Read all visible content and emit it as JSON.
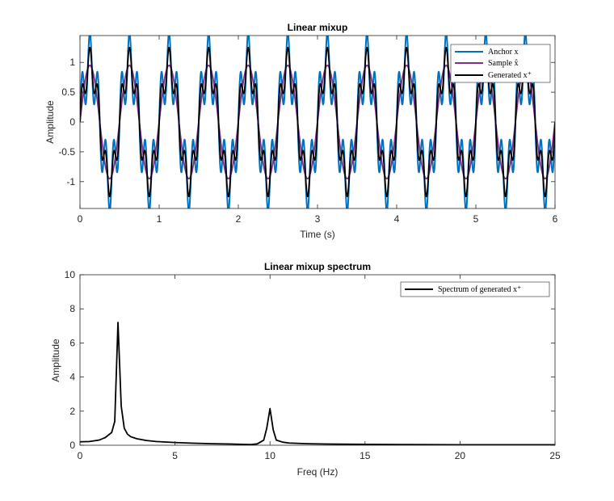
{
  "chart_data": [
    {
      "type": "line",
      "title": "Linear mixup",
      "xlabel": "Time (s)",
      "ylabel": "Amplitude",
      "xlim": [
        0,
        6
      ],
      "ylim": [
        -1.45,
        1.45
      ],
      "xticks": [
        0,
        1,
        2,
        3,
        4,
        5,
        6
      ],
      "yticks": [
        -1,
        -0.5,
        0,
        0.5,
        1
      ],
      "xtick_labels": [
        "0",
        "1",
        "2",
        "3",
        "4",
        "5",
        "6"
      ],
      "ytick_labels": [
        "-1",
        "-0.5",
        "0",
        "0.5",
        "1"
      ],
      "grid": false,
      "legend_position": "top-right",
      "series": [
        {
          "name": "Anchor x",
          "color": "#0072BD",
          "signal": {
            "components": [
              {
                "amp": 1.0,
                "freq": 2
              },
              {
                "amp": 0.5,
                "freq": 10
              }
            ]
          }
        },
        {
          "name": "Sample x̂",
          "color": "#7E2F8E",
          "signal": {
            "components": [
              {
                "amp": 0.95,
                "freq": 2
              }
            ]
          }
        },
        {
          "name": "Generated x⁺",
          "color": "#000000",
          "signal": {
            "components": [
              {
                "amp": 0.97,
                "freq": 2
              },
              {
                "amp": 0.28,
                "freq": 10
              }
            ]
          }
        }
      ]
    },
    {
      "type": "line",
      "title": "Linear mixup spectrum",
      "xlabel": "Freq (Hz)",
      "ylabel": "Amplitude",
      "xlim": [
        0,
        25
      ],
      "ylim": [
        0,
        10
      ],
      "xticks": [
        0,
        5,
        10,
        15,
        20,
        25
      ],
      "yticks": [
        0,
        2,
        4,
        6,
        8,
        10
      ],
      "xtick_labels": [
        "0",
        "5",
        "10",
        "15",
        "20",
        "25"
      ],
      "ytick_labels": [
        "0",
        "2",
        "4",
        "6",
        "8",
        "10"
      ],
      "grid": false,
      "legend_position": "top-right",
      "series": [
        {
          "name": "Spectrum of generated x⁺",
          "color": "#000000",
          "x": [
            0,
            0.5,
            1,
            1.33,
            1.67,
            1.83,
            2.0,
            2.17,
            2.33,
            2.5,
            2.67,
            3.0,
            3.5,
            4,
            5,
            6,
            7,
            8,
            8.5,
            9,
            9.33,
            9.67,
            9.83,
            10.0,
            10.17,
            10.33,
            10.67,
            11,
            12,
            13,
            15,
            17,
            20,
            22,
            25
          ],
          "values": [
            0.2,
            0.22,
            0.3,
            0.45,
            0.75,
            1.4,
            7.2,
            2.3,
            1.0,
            0.65,
            0.5,
            0.38,
            0.28,
            0.22,
            0.16,
            0.12,
            0.09,
            0.07,
            0.05,
            0.04,
            0.08,
            0.3,
            1.0,
            2.15,
            0.9,
            0.3,
            0.18,
            0.13,
            0.09,
            0.07,
            0.05,
            0.04,
            0.03,
            0.03,
            0.03
          ]
        }
      ]
    }
  ]
}
